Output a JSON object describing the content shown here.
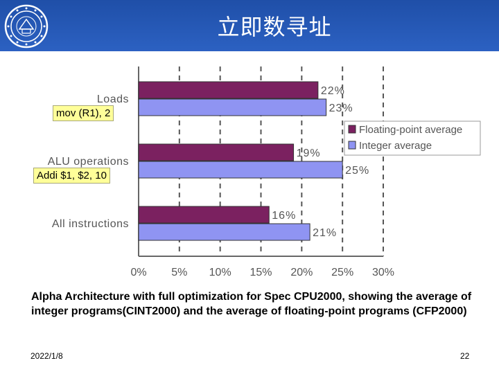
{
  "slide": {
    "title": "立即数寻址",
    "caption": "Alpha Architecture with full optimization for Spec CPU2000, showing the average of integer programs(CINT2000) and the average of floating-point programs (CFP2000)",
    "date": "2022/1/8",
    "page_number": "22"
  },
  "callouts": {
    "mov": "mov (R1), 2",
    "addi": "Addi $1, $2, 10"
  },
  "colors": {
    "header": "#2a5cbf",
    "floating_point": "#7b2160",
    "integer": "#8f94f2",
    "callout_bg": "#ffff99"
  },
  "chart_data": {
    "type": "bar",
    "orientation": "horizontal",
    "categories": [
      "Loads",
      "ALU  operations",
      "All  instructions"
    ],
    "series": [
      {
        "name": "Floating-point  average",
        "values": [
          22,
          19,
          16
        ]
      },
      {
        "name": "Integer  average",
        "values": [
          23,
          25,
          21
        ]
      }
    ],
    "data_labels": [
      [
        "22%",
        "19%",
        "16%"
      ],
      [
        "23%",
        "25%",
        "21%"
      ]
    ],
    "xticks": [
      "0%",
      "5%",
      "10%",
      "15%",
      "20%",
      "25%",
      "30%"
    ],
    "xlim": [
      0,
      30
    ],
    "grid": "vertical dashed",
    "legend": "right"
  }
}
